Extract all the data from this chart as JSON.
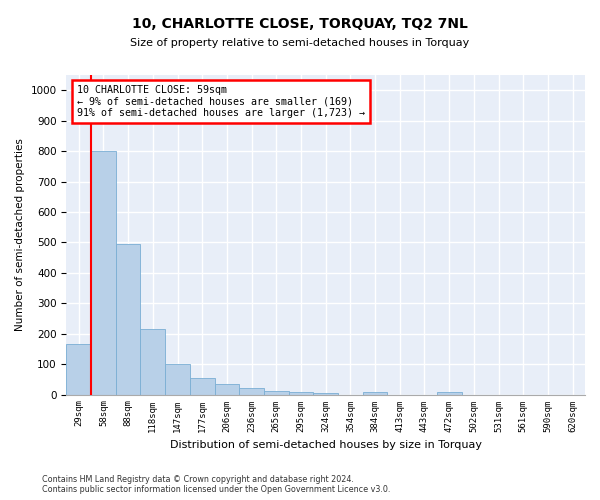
{
  "title": "10, CHARLOTTE CLOSE, TORQUAY, TQ2 7NL",
  "subtitle": "Size of property relative to semi-detached houses in Torquay",
  "xlabel": "Distribution of semi-detached houses by size in Torquay",
  "ylabel": "Number of semi-detached properties",
  "categories": [
    "29sqm",
    "58sqm",
    "88sqm",
    "118sqm",
    "147sqm",
    "177sqm",
    "206sqm",
    "236sqm",
    "265sqm",
    "295sqm",
    "324sqm",
    "354sqm",
    "384sqm",
    "413sqm",
    "443sqm",
    "472sqm",
    "502sqm",
    "531sqm",
    "561sqm",
    "590sqm",
    "620sqm"
  ],
  "values": [
    165,
    800,
    495,
    215,
    100,
    53,
    35,
    20,
    13,
    10,
    5,
    0,
    8,
    0,
    0,
    10,
    0,
    0,
    0,
    0,
    0
  ],
  "bar_color": "#b8d0e8",
  "bar_edge_color": "#7aaed4",
  "red_line_bin_index": 1,
  "annotation_text": "10 CHARLOTTE CLOSE: 59sqm\n← 9% of semi-detached houses are smaller (169)\n91% of semi-detached houses are larger (1,723) →",
  "annotation_box_color": "white",
  "annotation_box_edge_color": "red",
  "red_line_color": "red",
  "ylim": [
    0,
    1050
  ],
  "yticks": [
    0,
    100,
    200,
    300,
    400,
    500,
    600,
    700,
    800,
    900,
    1000
  ],
  "footer_line1": "Contains HM Land Registry data © Crown copyright and database right 2024.",
  "footer_line2": "Contains public sector information licensed under the Open Government Licence v3.0.",
  "bg_color": "#e8eef8",
  "grid_color": "white"
}
